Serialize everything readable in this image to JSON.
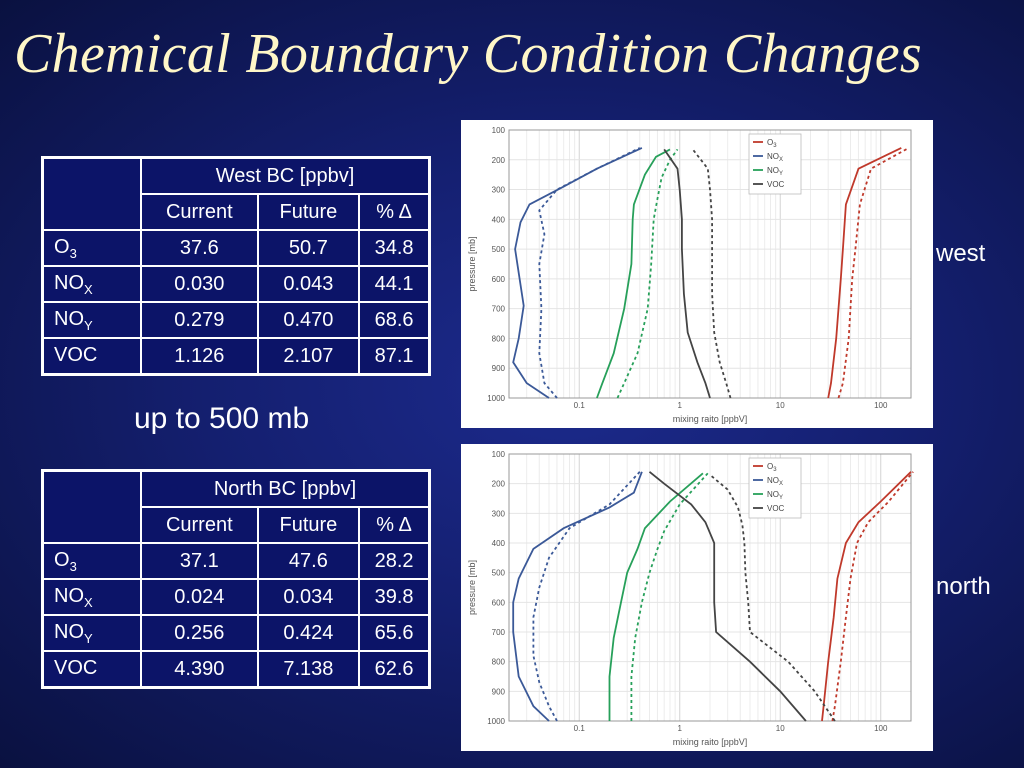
{
  "slide": {
    "title": "Chemical Boundary Condition Changes",
    "caption": "up to 500 mb",
    "west_label": "west",
    "north_label": "north"
  },
  "tables": {
    "west": {
      "header": "West BC [ppbv]",
      "columns": [
        "Current",
        "Future",
        "% Δ"
      ],
      "rows": [
        {
          "species": "O",
          "sub": "3",
          "current": "37.6",
          "future": "50.7",
          "pct": "34.8"
        },
        {
          "species": "NO",
          "sub": "X",
          "current": "0.030",
          "future": "0.043",
          "pct": "44.1"
        },
        {
          "species": "NO",
          "sub": "Y",
          "current": "0.279",
          "future": "0.470",
          "pct": "68.6"
        },
        {
          "species": "VOC",
          "sub": "",
          "current": "1.126",
          "future": "2.107",
          "pct": "87.1"
        }
      ]
    },
    "north": {
      "header": "North BC [ppbv]",
      "columns": [
        "Current",
        "Future",
        "% Δ"
      ],
      "rows": [
        {
          "species": "O",
          "sub": "3",
          "current": "37.1",
          "future": "47.6",
          "pct": "28.2"
        },
        {
          "species": "NO",
          "sub": "X",
          "current": "0.024",
          "future": "0.034",
          "pct": "39.8"
        },
        {
          "species": "NO",
          "sub": "Y",
          "current": "0.256",
          "future": "0.424",
          "pct": "65.6"
        },
        {
          "species": "VOC",
          "sub": "",
          "current": "4.390",
          "future": "7.138",
          "pct": "62.6"
        }
      ]
    }
  },
  "chart_data": [
    {
      "type": "line",
      "xlabel": "mixing raito [ppbV]",
      "ylabel": "pressure [mb]",
      "xscale": "log",
      "xlim": [
        0.02,
        200
      ],
      "ylim": [
        1000,
        100
      ],
      "xticks": [
        "0.1",
        "1",
        "10",
        "100"
      ],
      "yticks": [
        "100",
        "200",
        "300",
        "400",
        "500",
        "600",
        "700",
        "800",
        "900",
        "1000"
      ],
      "legend_position": "top-right",
      "legend": [
        {
          "label": "O",
          "sub": "3",
          "color": "#c0392b"
        },
        {
          "label": "NO",
          "sub": "X",
          "color": "#3b5998"
        },
        {
          "label": "NO",
          "sub": "Y",
          "color": "#27a05a"
        },
        {
          "label": "VOC",
          "sub": "",
          "color": "#444444"
        }
      ],
      "series": [
        {
          "color": "#c0392b",
          "dash": false,
          "points": [
            [
              30,
              1000
            ],
            [
              32,
              950
            ],
            [
              36,
              800
            ],
            [
              40,
              600
            ],
            [
              42,
              500
            ],
            [
              45,
              350
            ],
            [
              60,
              230
            ],
            [
              160,
              160
            ]
          ]
        },
        {
          "color": "#c0392b",
          "dash": true,
          "points": [
            [
              38,
              1000
            ],
            [
              42,
              950
            ],
            [
              48,
              800
            ],
            [
              52,
              600
            ],
            [
              56,
              500
            ],
            [
              62,
              350
            ],
            [
              80,
              230
            ],
            [
              190,
              160
            ]
          ]
        },
        {
          "color": "#3b5998",
          "dash": false,
          "points": [
            [
              0.05,
              1000
            ],
            [
              0.03,
              950
            ],
            [
              0.022,
              880
            ],
            [
              0.025,
              800
            ],
            [
              0.028,
              690
            ],
            [
              0.023,
              500
            ],
            [
              0.026,
              410
            ],
            [
              0.032,
              350
            ],
            [
              0.07,
              290
            ],
            [
              0.15,
              230
            ],
            [
              0.42,
              160
            ]
          ]
        },
        {
          "color": "#3b5998",
          "dash": true,
          "points": [
            [
              0.06,
              1000
            ],
            [
              0.045,
              950
            ],
            [
              0.04,
              850
            ],
            [
              0.042,
              700
            ],
            [
              0.04,
              550
            ],
            [
              0.045,
              450
            ],
            [
              0.04,
              370
            ],
            [
              0.06,
              300
            ],
            [
              0.15,
              230
            ],
            [
              0.4,
              160
            ]
          ]
        },
        {
          "color": "#27a05a",
          "dash": false,
          "points": [
            [
              0.15,
              1000
            ],
            [
              0.17,
              950
            ],
            [
              0.22,
              850
            ],
            [
              0.28,
              700
            ],
            [
              0.33,
              550
            ],
            [
              0.34,
              400
            ],
            [
              0.35,
              350
            ],
            [
              0.45,
              250
            ],
            [
              0.58,
              190
            ],
            [
              0.8,
              165
            ]
          ]
        },
        {
          "color": "#27a05a",
          "dash": true,
          "points": [
            [
              0.24,
              1000
            ],
            [
              0.28,
              950
            ],
            [
              0.38,
              850
            ],
            [
              0.48,
              700
            ],
            [
              0.52,
              550
            ],
            [
              0.55,
              400
            ],
            [
              0.6,
              330
            ],
            [
              0.66,
              260
            ],
            [
              0.8,
              200
            ],
            [
              0.95,
              165
            ]
          ]
        },
        {
          "color": "#444444",
          "dash": false,
          "points": [
            [
              2,
              1000
            ],
            [
              1.8,
              950
            ],
            [
              1.5,
              880
            ],
            [
              1.2,
              780
            ],
            [
              1.1,
              650
            ],
            [
              1.05,
              500
            ],
            [
              1.05,
              400
            ],
            [
              1.0,
              300
            ],
            [
              0.95,
              230
            ],
            [
              0.7,
              165
            ]
          ]
        },
        {
          "color": "#444444",
          "dash": true,
          "points": [
            [
              3.2,
              1000
            ],
            [
              2.9,
              950
            ],
            [
              2.5,
              880
            ],
            [
              2.2,
              780
            ],
            [
              2.1,
              650
            ],
            [
              2.1,
              500
            ],
            [
              2.1,
              400
            ],
            [
              2.0,
              300
            ],
            [
              1.9,
              230
            ],
            [
              1.35,
              165
            ]
          ]
        }
      ]
    },
    {
      "type": "line",
      "xlabel": "mixing raito [ppbV]",
      "ylabel": "pressure [mb]",
      "xscale": "log",
      "xlim": [
        0.02,
        200
      ],
      "ylim": [
        1000,
        100
      ],
      "xticks": [
        "0.1",
        "1",
        "10",
        "100"
      ],
      "yticks": [
        "100",
        "200",
        "300",
        "400",
        "500",
        "600",
        "700",
        "800",
        "900",
        "1000"
      ],
      "legend_position": "top-right",
      "legend": [
        {
          "label": "O",
          "sub": "3",
          "color": "#c0392b"
        },
        {
          "label": "NO",
          "sub": "X",
          "color": "#3b5998"
        },
        {
          "label": "NO",
          "sub": "Y",
          "color": "#27a05a"
        },
        {
          "label": "VOC",
          "sub": "",
          "color": "#444444"
        }
      ],
      "series": [
        {
          "color": "#c0392b",
          "dash": false,
          "points": [
            [
              26,
              1000
            ],
            [
              27,
              950
            ],
            [
              30,
              800
            ],
            [
              34,
              650
            ],
            [
              37,
              520
            ],
            [
              45,
              400
            ],
            [
              60,
              330
            ],
            [
              100,
              260
            ],
            [
              200,
              160
            ]
          ]
        },
        {
          "color": "#c0392b",
          "dash": true,
          "points": [
            [
              33,
              1000
            ],
            [
              35,
              950
            ],
            [
              40,
              800
            ],
            [
              45,
              650
            ],
            [
              50,
              520
            ],
            [
              58,
              400
            ],
            [
              75,
              330
            ],
            [
              120,
              260
            ],
            [
              210,
              160
            ]
          ]
        },
        {
          "color": "#3b5998",
          "dash": false,
          "points": [
            [
              0.05,
              1000
            ],
            [
              0.035,
              950
            ],
            [
              0.025,
              850
            ],
            [
              0.022,
              700
            ],
            [
              0.022,
              600
            ],
            [
              0.025,
              520
            ],
            [
              0.035,
              420
            ],
            [
              0.07,
              350
            ],
            [
              0.2,
              280
            ],
            [
              0.35,
              230
            ],
            [
              0.42,
              160
            ]
          ]
        },
        {
          "color": "#3b5998",
          "dash": true,
          "points": [
            [
              0.06,
              1000
            ],
            [
              0.05,
              950
            ],
            [
              0.04,
              870
            ],
            [
              0.035,
              780
            ],
            [
              0.035,
              650
            ],
            [
              0.04,
              550
            ],
            [
              0.05,
              450
            ],
            [
              0.08,
              350
            ],
            [
              0.2,
              270
            ],
            [
              0.4,
              160
            ]
          ]
        },
        {
          "color": "#27a05a",
          "dash": false,
          "points": [
            [
              0.2,
              1000
            ],
            [
              0.2,
              950
            ],
            [
              0.2,
              850
            ],
            [
              0.22,
              720
            ],
            [
              0.26,
              600
            ],
            [
              0.3,
              500
            ],
            [
              0.38,
              420
            ],
            [
              0.45,
              350
            ],
            [
              0.8,
              260
            ],
            [
              1.7,
              165
            ]
          ]
        },
        {
          "color": "#27a05a",
          "dash": true,
          "points": [
            [
              0.33,
              1000
            ],
            [
              0.33,
              950
            ],
            [
              0.33,
              850
            ],
            [
              0.36,
              720
            ],
            [
              0.42,
              600
            ],
            [
              0.5,
              500
            ],
            [
              0.6,
              420
            ],
            [
              0.7,
              360
            ],
            [
              1.0,
              270
            ],
            [
              1.9,
              165
            ]
          ]
        },
        {
          "color": "#444444",
          "dash": false,
          "points": [
            [
              18,
              1000
            ],
            [
              10,
              900
            ],
            [
              5,
              800
            ],
            [
              2.3,
              700
            ],
            [
              2.2,
              600
            ],
            [
              2.2,
              500
            ],
            [
              2.2,
              400
            ],
            [
              1.8,
              330
            ],
            [
              1.3,
              270
            ],
            [
              0.7,
              200
            ],
            [
              0.5,
              160
            ]
          ]
        },
        {
          "color": "#444444",
          "dash": true,
          "points": [
            [
              35,
              1000
            ],
            [
              22,
              900
            ],
            [
              12,
              800
            ],
            [
              5,
              700
            ],
            [
              4.8,
              600
            ],
            [
              4.5,
              500
            ],
            [
              4.4,
              400
            ],
            [
              4.2,
              340
            ],
            [
              3.8,
              280
            ],
            [
              3.0,
              220
            ],
            [
              2,
              170
            ]
          ]
        }
      ]
    }
  ]
}
